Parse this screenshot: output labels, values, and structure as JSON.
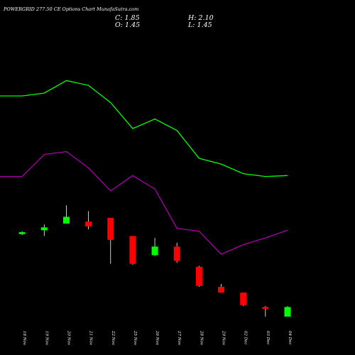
{
  "header": {
    "title": "POWERGRID 277.50  CE Options  Chart MunafaSutra.com",
    "close": "C: 1.85",
    "open": "O: 1.45",
    "high": "H: 2.10",
    "low": "L: 1.45"
  },
  "colors": {
    "background": "#000000",
    "up": "#00ff00",
    "down": "#ff0000",
    "upper_band": "#00ff00",
    "lower_band": "#aa00aa",
    "wick": "#ffffff"
  },
  "chart_data": {
    "type": "candlestick",
    "categories": [
      "18 Nov",
      "19 Nov",
      "20 Nov",
      "21 Nov",
      "22 Nov",
      "25 Nov",
      "26 Nov",
      "27 Nov",
      "28 Nov",
      "29 Nov",
      "02 Dec",
      "03 Dec",
      "04 Dec"
    ],
    "x_label_slots": [
      1,
      2,
      3,
      4,
      5,
      6,
      7,
      8,
      9,
      10,
      11,
      12,
      13
    ],
    "candles": [
      {
        "date": "18 Nov",
        "open": 5.6,
        "close": 5.8,
        "high": 5.9,
        "low": 5.5
      },
      {
        "date": "19 Nov",
        "open": 6.0,
        "close": 6.3,
        "high": 6.6,
        "low": 5.4
      },
      {
        "date": "20 Nov",
        "open": 6.7,
        "close": 7.4,
        "high": 8.6,
        "low": 6.7
      },
      {
        "date": "21 Nov",
        "open": 6.9,
        "close": 6.4,
        "high": 8.0,
        "low": 6.1
      },
      {
        "date": "22 Nov",
        "open": 7.3,
        "close": 5.0,
        "high": 7.3,
        "low": 2.5
      },
      {
        "date": "25 Nov",
        "open": 5.4,
        "close": 2.5,
        "high": 5.4,
        "low": 2.4
      },
      {
        "date": "26 Nov",
        "open": 3.4,
        "close": 4.3,
        "high": 5.2,
        "low": 3.3
      },
      {
        "date": "27 Nov",
        "open": 4.3,
        "close": 2.8,
        "high": 4.7,
        "low": 2.6
      },
      {
        "date": "28 Nov",
        "open": 2.2,
        "close": 0.2,
        "high": 2.3,
        "low": 0.1
      },
      {
        "date": "29 Nov",
        "open": 0.1,
        "close": -0.5,
        "high": 0.4,
        "low": -0.5
      },
      {
        "date": "02 Dec",
        "open": -0.5,
        "close": -1.8,
        "high": -0.5,
        "low": -1.9
      },
      {
        "date": "03 Dec",
        "open": -2.0,
        "close": -2.2,
        "high": -1.9,
        "low": -3.0
      },
      {
        "date": "04 Dec",
        "open": -3.0,
        "close": -2.0,
        "high": -1.9,
        "low": -3.0
      }
    ],
    "upper_band": {
      "x": [
        0,
        1,
        2,
        3,
        4,
        5,
        6,
        7,
        8,
        9,
        10,
        11,
        12,
        13
      ],
      "values": [
        20.0,
        20.0,
        20.3,
        21.6,
        21.1,
        19.3,
        16.6,
        17.6,
        16.4,
        13.5,
        12.9,
        11.9,
        11.6,
        11.7
      ]
    },
    "lower_band": {
      "x": [
        0,
        1,
        2,
        3,
        4,
        5,
        6,
        7,
        8,
        9,
        10,
        11,
        12,
        13
      ],
      "values": [
        11.6,
        11.6,
        13.9,
        14.2,
        12.5,
        10.1,
        11.7,
        10.3,
        6.2,
        5.9,
        3.5,
        4.5,
        5.2,
        6.0
      ]
    },
    "ylim": [
      -7.0,
      30.0
    ],
    "xlim": [
      0,
      13
    ],
    "grid": false,
    "legend": "none"
  }
}
